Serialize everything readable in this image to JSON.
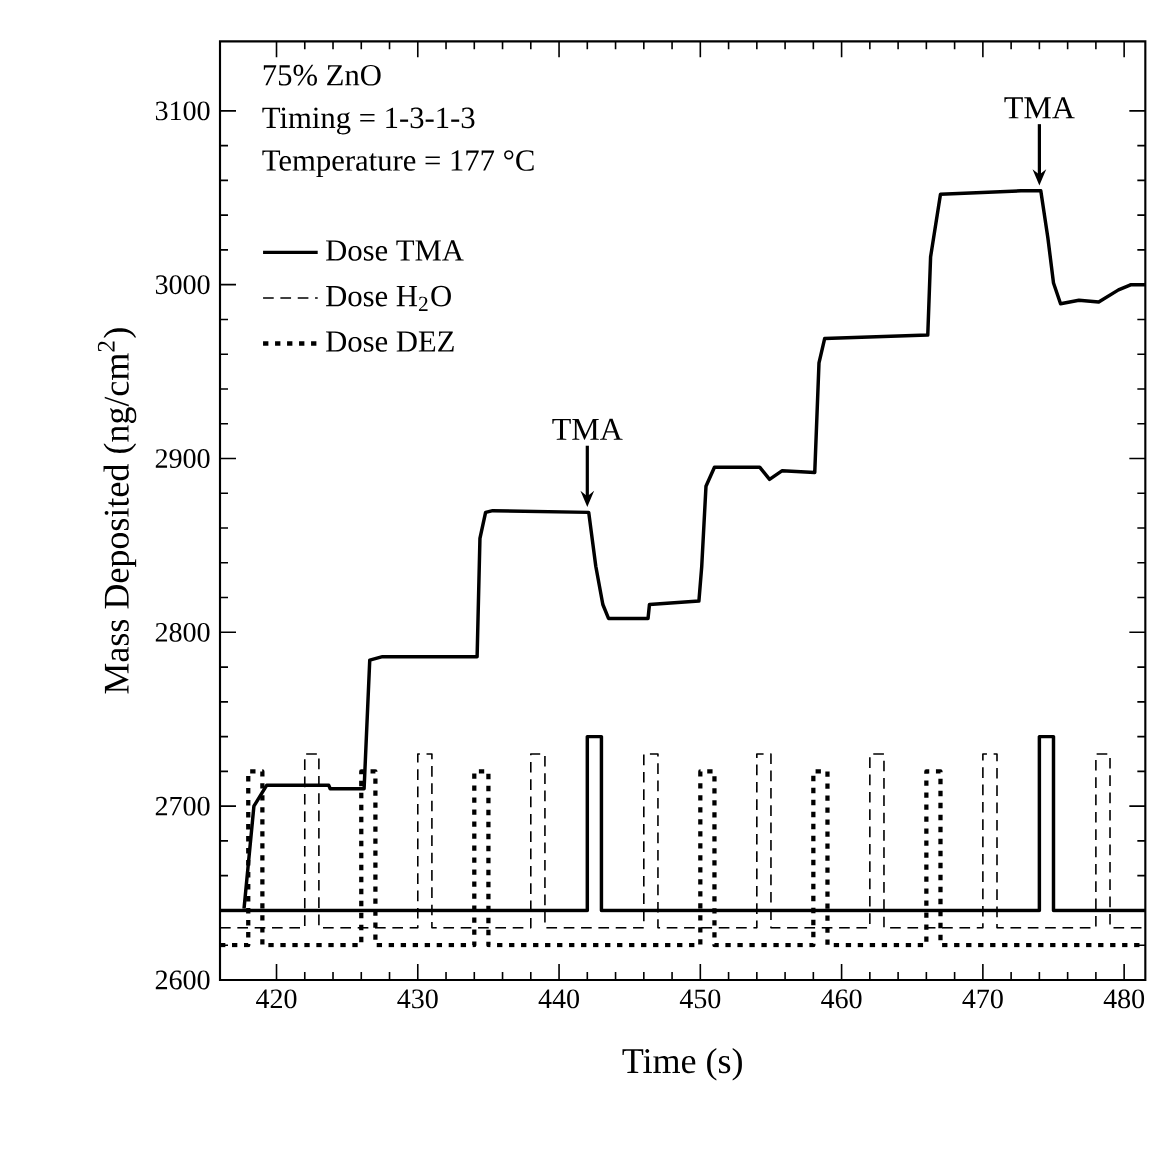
{
  "chart_data": {
    "type": "line",
    "xlabel": "Time (s)",
    "ylabel": "Mass Deposited (ng/cm$^{2}$)",
    "xlim": [
      416,
      481.5
    ],
    "ylim": [
      2600,
      3140
    ],
    "xticks": [
      420,
      430,
      440,
      450,
      460,
      470,
      480
    ],
    "yticks": [
      2600,
      2700,
      2800,
      2900,
      3000,
      3100
    ],
    "legend": "top left",
    "marker": "none",
    "annotations": [
      "75% ZnO",
      "Timing = 1-3-1-3",
      "Temperature = 177 °C",
      {
        "text": "TMA",
        "x": 442,
        "y": 2869
      },
      {
        "text": "TMA",
        "x": 474,
        "y": 3054
      }
    ],
    "series": [
      {
        "color": "#000000",
        "line_style": "solid",
        "x": [
          417.7,
          418.4,
          419.3,
          423.7,
          423.8,
          426.2,
          426.6,
          427.5,
          434.2,
          434.4,
          434.8,
          435.3,
          442.1,
          442.6,
          443.1,
          443.5,
          446.3,
          446.4,
          449.9,
          450.1,
          450.4,
          451.0,
          454.2,
          454.9,
          455.8,
          458.1,
          458.4,
          458.8,
          466.1,
          466.3,
          467.0,
          472.7,
          474.1,
          474.6,
          475.0,
          475.5,
          476.8,
          478.2,
          479.6,
          480.5,
          481.5
        ],
        "values": [
          2641,
          2700,
          2712,
          2712,
          2710,
          2710,
          2784,
          2786,
          2786,
          2854,
          2869,
          2870,
          2869,
          2838,
          2816,
          2808,
          2808,
          2816,
          2818,
          2838,
          2884,
          2895,
          2895,
          2888,
          2893,
          2892,
          2955,
          2969,
          2971,
          3016,
          3052,
          3054,
          3054,
          3027,
          3001,
          2989,
          2991,
          2990,
          2997,
          3000,
          3000
        ]
      },
      {
        "name": "Dose TMA",
        "color": "#000000",
        "line_style": "solid",
        "x": [
          416,
          442,
          442,
          443,
          443,
          474,
          474,
          475,
          475,
          481.5
        ],
        "values": [
          2640,
          2640,
          2740,
          2740,
          2640,
          2640,
          2740,
          2740,
          2640,
          2640
        ]
      },
      {
        "name": "Dose H$_{2}$O",
        "color": "#000000",
        "line_style": "dashed",
        "x": [
          416,
          422,
          422,
          423,
          423,
          430,
          430,
          431,
          431,
          438,
          438,
          439,
          439,
          446,
          446,
          447,
          447,
          454,
          454,
          455,
          455,
          462,
          462,
          463,
          463,
          470,
          470,
          471,
          471,
          478,
          478,
          479,
          479,
          481.5
        ],
        "values": [
          2630,
          2630,
          2730,
          2730,
          2630,
          2630,
          2730,
          2730,
          2630,
          2630,
          2730,
          2730,
          2630,
          2630,
          2730,
          2730,
          2630,
          2630,
          2730,
          2730,
          2630,
          2630,
          2730,
          2730,
          2630,
          2630,
          2730,
          2730,
          2630,
          2630,
          2730,
          2730,
          2630,
          2630
        ]
      },
      {
        "name": "Dose DEZ",
        "color": "#000000",
        "line_style": "dotted",
        "x": [
          416,
          418,
          418,
          419,
          419,
          426,
          426,
          427,
          427,
          434,
          434,
          435,
          435,
          450,
          450,
          451,
          451,
          458,
          458,
          459,
          459,
          466,
          466,
          467,
          467,
          481.5
        ],
        "values": [
          2620,
          2620,
          2720,
          2720,
          2620,
          2620,
          2720,
          2720,
          2620,
          2620,
          2720,
          2720,
          2620,
          2620,
          2720,
          2720,
          2620,
          2620,
          2720,
          2720,
          2620,
          2620,
          2720,
          2720,
          2620,
          2620
        ]
      }
    ]
  }
}
